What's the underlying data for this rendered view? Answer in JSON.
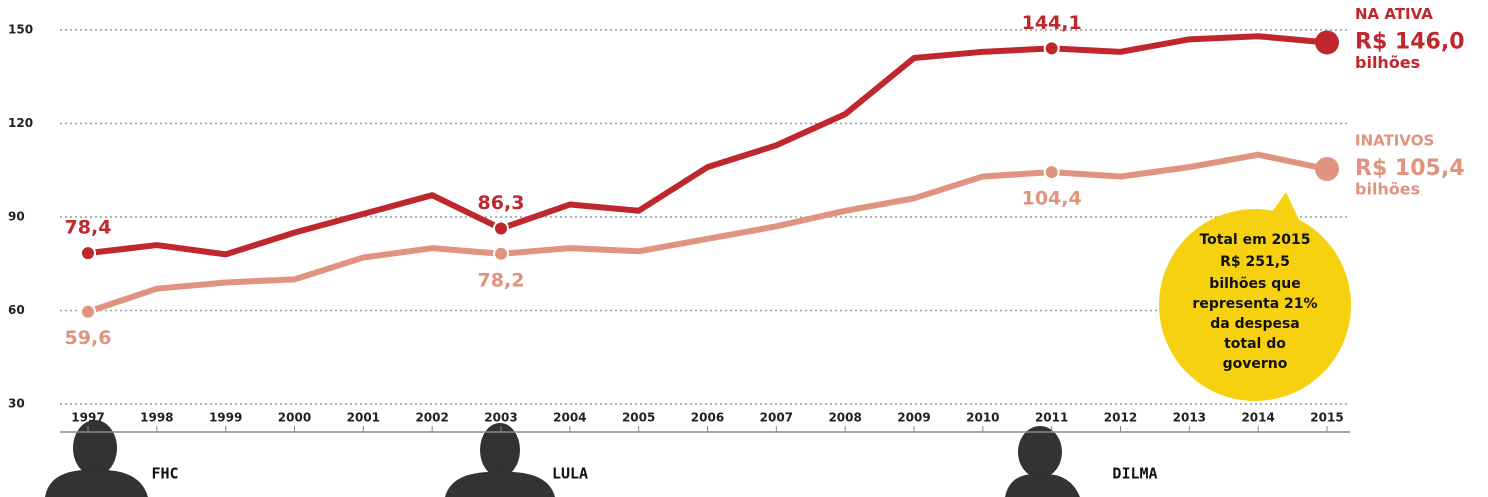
{
  "chart_data": {
    "type": "line",
    "categories": [
      "1997",
      "1998",
      "1999",
      "2000",
      "2001",
      "2002",
      "2003",
      "2004",
      "2005",
      "2006",
      "2007",
      "2008",
      "2009",
      "2010",
      "2011",
      "2012",
      "2013",
      "2014",
      "2015"
    ],
    "series": [
      {
        "name": "NA ATIVA",
        "color": "#c0272d",
        "values": [
          78.4,
          81,
          78,
          85,
          91,
          97,
          86.3,
          94,
          92,
          106,
          113,
          123,
          141,
          143,
          144.1,
          143,
          147,
          148,
          146.0
        ],
        "value_labels": [
          "78,4",
          null,
          null,
          null,
          null,
          null,
          "86,3",
          null,
          null,
          null,
          null,
          null,
          null,
          null,
          "144,1",
          null,
          null,
          null,
          "R$ 146,0"
        ],
        "unit": "bilhões"
      },
      {
        "name": "INATIVOS",
        "color": "#e0937e",
        "values": [
          59.6,
          67,
          69,
          70,
          77,
          80,
          78.2,
          80,
          79,
          83,
          87,
          92,
          96,
          103,
          104.4,
          103,
          106,
          110,
          105.4
        ],
        "value_labels": [
          "59,6",
          null,
          null,
          null,
          null,
          null,
          "78,2",
          null,
          null,
          null,
          null,
          null,
          null,
          null,
          "104,4",
          null,
          null,
          null,
          "R$ 105,4"
        ],
        "unit": "bilhões"
      }
    ],
    "ylim": [
      30,
      150
    ],
    "yticks": [
      30,
      60,
      90,
      120,
      150
    ],
    "grid": true,
    "callout": [
      "Total em 2015",
      "R$ 251,5",
      "bilhões que",
      "representa 21%",
      "da despesa",
      "total do",
      "governo"
    ],
    "presidents": [
      "FHC",
      "LULA",
      "DILMA"
    ]
  }
}
